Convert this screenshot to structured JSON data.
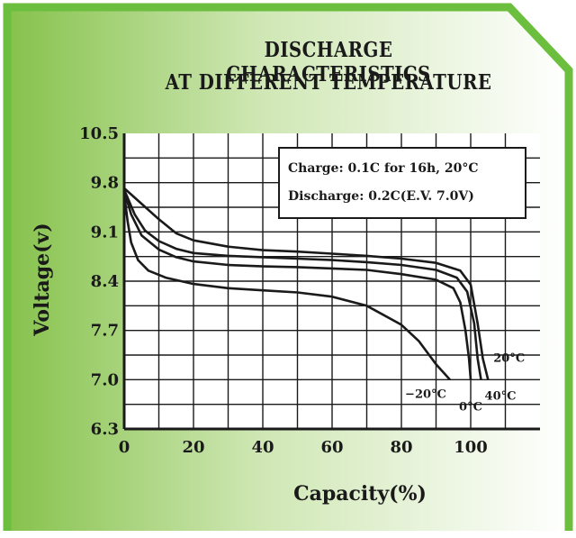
{
  "chart_data": {
    "type": "line",
    "title_lines": [
      "DISCHARGE CHARACTERISTICS",
      "AT DIFFERENT TEMPERATURE"
    ],
    "xlabel": "Capacity(%)",
    "ylabel": "Voltage(v)",
    "xlim": [
      0,
      120
    ],
    "ylim": [
      6.3,
      10.5
    ],
    "xticks": [
      "0",
      "20",
      "40",
      "60",
      "80",
      "100"
    ],
    "yticks": [
      "10.5",
      "9.8",
      "9.1",
      "8.4",
      "7.7",
      "7.0",
      "6.3"
    ],
    "grid": true,
    "notes": [
      "Charge: 0.1C for 16h, 20°C",
      "Discharge: 0.2C(E.V. 7.0V)"
    ],
    "series": [
      {
        "name": "20°C",
        "points": [
          [
            0,
            9.72
          ],
          [
            5,
            9.5
          ],
          [
            10,
            9.28
          ],
          [
            15,
            9.08
          ],
          [
            20,
            8.98
          ],
          [
            30,
            8.89
          ],
          [
            40,
            8.84
          ],
          [
            50,
            8.82
          ],
          [
            60,
            8.79
          ],
          [
            70,
            8.76
          ],
          [
            80,
            8.72
          ],
          [
            90,
            8.66
          ],
          [
            97,
            8.55
          ],
          [
            100,
            8.35
          ],
          [
            102,
            7.8
          ],
          [
            103.5,
            7.3
          ],
          [
            105,
            7.0
          ]
        ]
      },
      {
        "name": "40°C",
        "points": [
          [
            0,
            9.7
          ],
          [
            3,
            9.35
          ],
          [
            6,
            9.12
          ],
          [
            10,
            8.97
          ],
          [
            15,
            8.86
          ],
          [
            20,
            8.8
          ],
          [
            30,
            8.76
          ],
          [
            40,
            8.74
          ],
          [
            50,
            8.72
          ],
          [
            60,
            8.7
          ],
          [
            70,
            8.67
          ],
          [
            80,
            8.63
          ],
          [
            90,
            8.56
          ],
          [
            96,
            8.45
          ],
          [
            99,
            8.25
          ],
          [
            101,
            7.8
          ],
          [
            102,
            7.3
          ],
          [
            103,
            7.0
          ]
        ]
      },
      {
        "name": "0°C",
        "points": [
          [
            0,
            9.68
          ],
          [
            2,
            9.35
          ],
          [
            5,
            9.05
          ],
          [
            10,
            8.85
          ],
          [
            15,
            8.74
          ],
          [
            20,
            8.68
          ],
          [
            30,
            8.63
          ],
          [
            40,
            8.61
          ],
          [
            50,
            8.6
          ],
          [
            60,
            8.58
          ],
          [
            70,
            8.56
          ],
          [
            80,
            8.5
          ],
          [
            90,
            8.42
          ],
          [
            95,
            8.3
          ],
          [
            97,
            8.1
          ],
          [
            98.5,
            7.7
          ],
          [
            99.5,
            7.3
          ],
          [
            100,
            7.0
          ]
        ]
      },
      {
        "name": "−20°C",
        "points": [
          [
            0,
            9.65
          ],
          [
            1,
            9.25
          ],
          [
            2,
            8.95
          ],
          [
            4,
            8.7
          ],
          [
            7,
            8.55
          ],
          [
            12,
            8.45
          ],
          [
            20,
            8.36
          ],
          [
            30,
            8.3
          ],
          [
            40,
            8.27
          ],
          [
            50,
            8.24
          ],
          [
            60,
            8.18
          ],
          [
            70,
            8.05
          ],
          [
            80,
            7.78
          ],
          [
            85,
            7.55
          ],
          [
            90,
            7.22
          ],
          [
            94,
            7.0
          ]
        ]
      }
    ]
  }
}
